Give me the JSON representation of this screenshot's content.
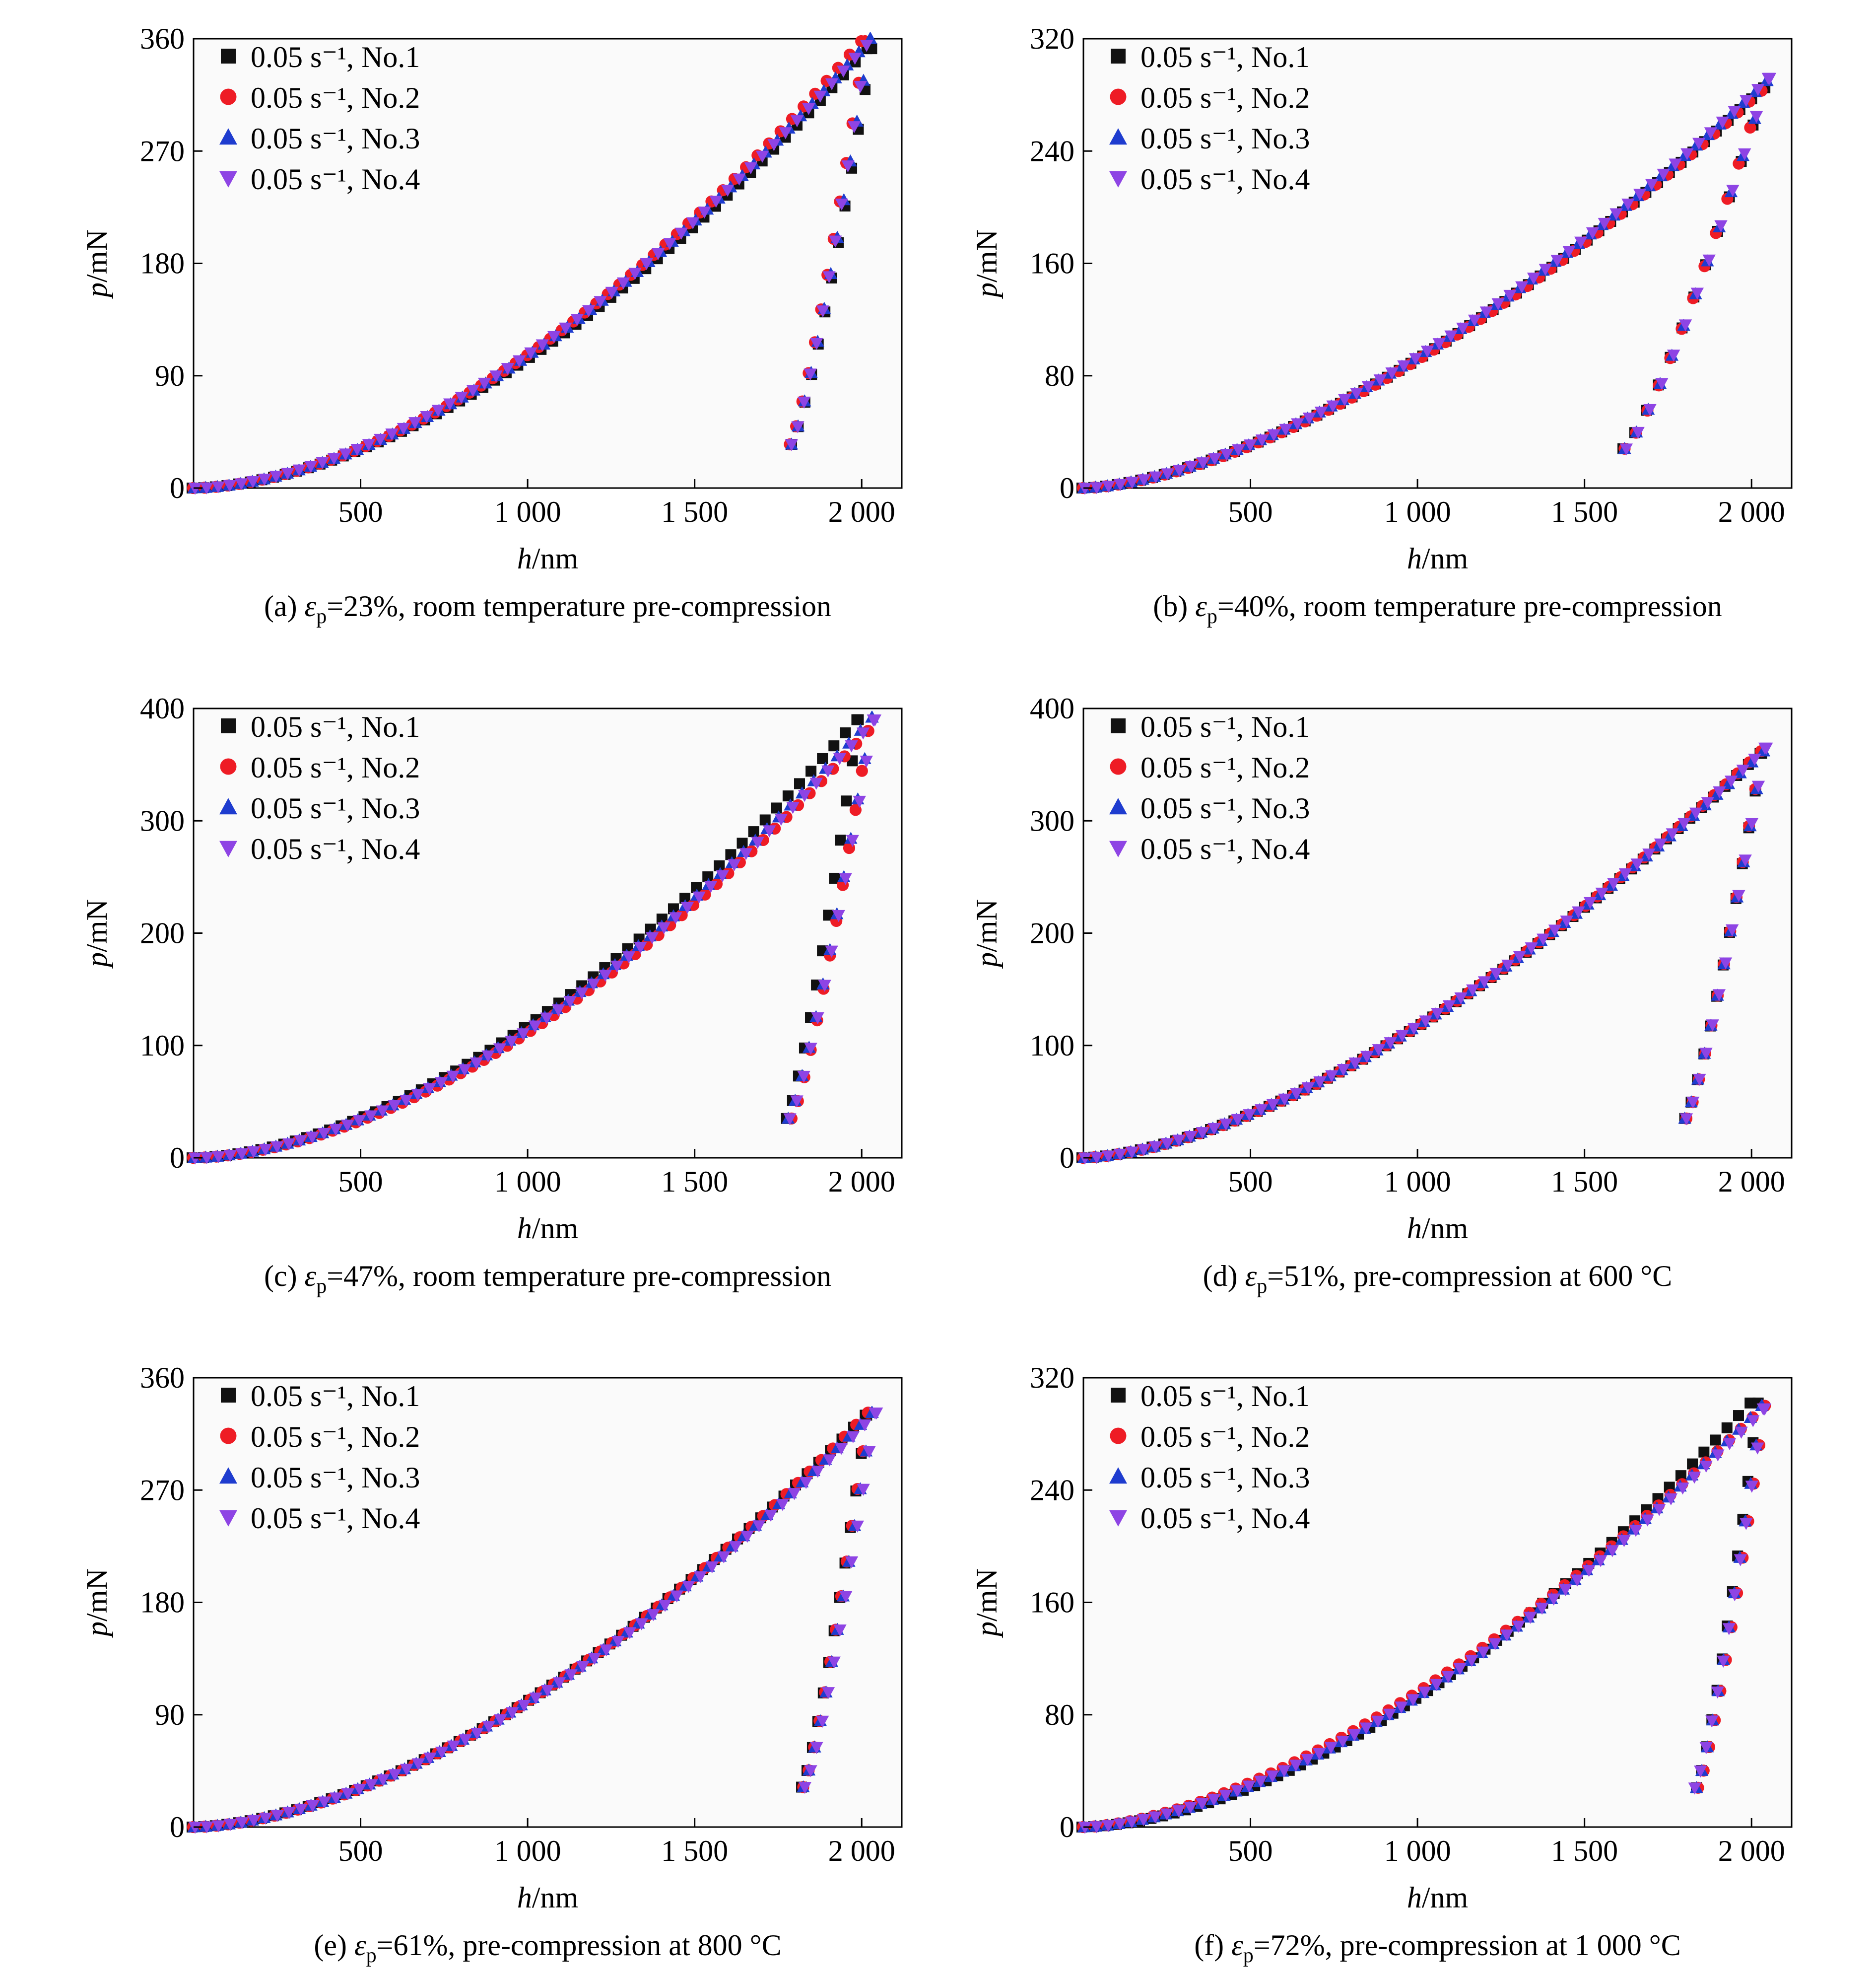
{
  "figure": {
    "background": "#ffffff",
    "series_styles": [
      {
        "marker": "square",
        "color": "#111111"
      },
      {
        "marker": "circle",
        "color": "#ee1c25"
      },
      {
        "marker": "triangle-up",
        "color": "#1e3ccf"
      },
      {
        "marker": "triangle-down",
        "color": "#8e44e4"
      }
    ]
  },
  "chart_data": [
    {
      "type": "scatter",
      "panel": "(a)",
      "caption": {
        "prefix": "(a) ",
        "symbol": "ε",
        "sub": "p",
        "suffix": "=23%, room temperature pre-compression"
      },
      "xlabel": {
        "var": "h",
        "unit": "/nm"
      },
      "ylabel": {
        "var": "p",
        "unit": "/mN"
      },
      "xlim": [
        0,
        2120
      ],
      "ylim": [
        0,
        360
      ],
      "xticks": [
        500,
        1000,
        1500,
        2000
      ],
      "xtick_labels": [
        "500",
        "1 000",
        "1 500",
        "2 000"
      ],
      "yticks": [
        0,
        90,
        180,
        270,
        360
      ],
      "ytick_labels": [
        "0",
        "90",
        "180",
        "270",
        "360"
      ],
      "grid": false,
      "legend": "top-left",
      "series": [
        {
          "name": "0.05 s⁻¹, No.1",
          "loading": {
            "h_max": 2020,
            "p_max": 352,
            "exponent": 1.75
          },
          "unloading": {
            "h_start": 1790,
            "h_end": 2030,
            "p_start": 35,
            "p_end": 352
          }
        },
        {
          "name": "0.05 s⁻¹, No.2",
          "loading": {
            "h_max": 2000,
            "p_max": 358,
            "exponent": 1.75
          },
          "unloading": {
            "h_start": 1785,
            "h_end": 2010,
            "p_start": 35,
            "p_end": 358
          }
        },
        {
          "name": "0.05 s⁻¹, No.3",
          "loading": {
            "h_max": 2025,
            "p_max": 360,
            "exponent": 1.73
          },
          "unloading": {
            "h_start": 1790,
            "h_end": 2025,
            "p_start": 35,
            "p_end": 360
          }
        },
        {
          "name": "0.05 s⁻¹, No.4",
          "loading": {
            "h_max": 2010,
            "p_max": 355,
            "exponent": 1.71
          },
          "unloading": {
            "h_start": 1790,
            "h_end": 2015,
            "p_start": 35,
            "p_end": 355
          }
        }
      ]
    },
    {
      "type": "scatter",
      "panel": "(b)",
      "caption": {
        "prefix": "(b) ",
        "symbol": "ε",
        "sub": "p",
        "suffix": "=40%, room temperature pre-compression"
      },
      "xlabel": {
        "var": "h",
        "unit": "/nm"
      },
      "ylabel": {
        "var": "p",
        "unit": "/mN"
      },
      "xlim": [
        0,
        2120
      ],
      "ylim": [
        0,
        320
      ],
      "xticks": [
        500,
        1000,
        1500,
        2000
      ],
      "xtick_labels": [
        "500",
        "1 000",
        "1 500",
        "2 000"
      ],
      "yticks": [
        0,
        80,
        160,
        240,
        320
      ],
      "ytick_labels": [
        "0",
        "80",
        "160",
        "240",
        "320"
      ],
      "grid": false,
      "legend": "top-left",
      "series": [
        {
          "name": "0.05 s⁻¹, No.1",
          "loading": {
            "h_max": 2040,
            "p_max": 285,
            "exponent": 1.6
          },
          "unloading": {
            "h_start": 1615,
            "h_end": 2040,
            "p_start": 28,
            "p_end": 285
          }
        },
        {
          "name": "0.05 s⁻¹, No.2",
          "loading": {
            "h_max": 2030,
            "p_max": 283,
            "exponent": 1.6
          },
          "unloading": {
            "h_start": 1620,
            "h_end": 2030,
            "p_start": 28,
            "p_end": 283
          }
        },
        {
          "name": "0.05 s⁻¹, No.3",
          "loading": {
            "h_max": 2045,
            "p_max": 290,
            "exponent": 1.58
          },
          "unloading": {
            "h_start": 1620,
            "h_end": 2045,
            "p_start": 28,
            "p_end": 290
          }
        },
        {
          "name": "0.05 s⁻¹, No.4",
          "loading": {
            "h_max": 2050,
            "p_max": 292,
            "exponent": 1.58
          },
          "unloading": {
            "h_start": 1625,
            "h_end": 2050,
            "p_start": 28,
            "p_end": 292
          }
        }
      ]
    },
    {
      "type": "scatter",
      "panel": "(c)",
      "caption": {
        "prefix": "(c) ",
        "symbol": "ε",
        "sub": "p",
        "suffix": "=47%, room temperature pre-compression"
      },
      "xlabel": {
        "var": "h",
        "unit": "/nm"
      },
      "ylabel": {
        "var": "p",
        "unit": "/mN"
      },
      "xlim": [
        0,
        2120
      ],
      "ylim": [
        0,
        400
      ],
      "xticks": [
        500,
        1000,
        1500,
        2000
      ],
      "xtick_labels": [
        "500",
        "1 000",
        "1 500",
        "2 000"
      ],
      "yticks": [
        0,
        100,
        200,
        300,
        400
      ],
      "ytick_labels": [
        "0",
        "100",
        "200",
        "300",
        "400"
      ],
      "grid": false,
      "legend": "top-left",
      "series": [
        {
          "name": "0.05 s⁻¹, No.1",
          "loading": {
            "h_max": 1990,
            "p_max": 390,
            "exponent": 1.75
          },
          "unloading": {
            "h_start": 1775,
            "h_end": 1990,
            "p_start": 35,
            "p_end": 390
          }
        },
        {
          "name": "0.05 s⁻¹, No.2",
          "loading": {
            "h_max": 2020,
            "p_max": 380,
            "exponent": 1.75
          },
          "unloading": {
            "h_start": 1790,
            "h_end": 2020,
            "p_start": 35,
            "p_end": 380
          }
        },
        {
          "name": "0.05 s⁻¹, No.3",
          "loading": {
            "h_max": 2030,
            "p_max": 392,
            "exponent": 1.73
          },
          "unloading": {
            "h_start": 1780,
            "h_end": 2030,
            "p_start": 35,
            "p_end": 392
          }
        },
        {
          "name": "0.05 s⁻¹, No.4",
          "loading": {
            "h_max": 2035,
            "p_max": 390,
            "exponent": 1.73
          },
          "unloading": {
            "h_start": 1785,
            "h_end": 2035,
            "p_start": 35,
            "p_end": 390
          }
        }
      ]
    },
    {
      "type": "scatter",
      "panel": "(d)",
      "caption": {
        "prefix": "(d) ",
        "symbol": "ε",
        "sub": "p",
        "suffix": "=51%, pre-compression at 600 °C"
      },
      "xlabel": {
        "var": "h",
        "unit": "/nm"
      },
      "ylabel": {
        "var": "p",
        "unit": "/mN"
      },
      "xlim": [
        0,
        2120
      ],
      "ylim": [
        0,
        400
      ],
      "xticks": [
        500,
        1000,
        1500,
        2000
      ],
      "xtick_labels": [
        "500",
        "1 000",
        "1 500",
        "2 000"
      ],
      "yticks": [
        0,
        100,
        200,
        300,
        400
      ],
      "ytick_labels": [
        "0",
        "100",
        "200",
        "300",
        "400"
      ],
      "grid": false,
      "legend": "top-left",
      "series": [
        {
          "name": "0.05 s⁻¹, No.1",
          "loading": {
            "h_max": 2030,
            "p_max": 360,
            "exponent": 1.6
          },
          "unloading": {
            "h_start": 1800,
            "h_end": 2030,
            "p_start": 35,
            "p_end": 360
          }
        },
        {
          "name": "0.05 s⁻¹, No.2",
          "loading": {
            "h_max": 2030,
            "p_max": 362,
            "exponent": 1.6
          },
          "unloading": {
            "h_start": 1805,
            "h_end": 2030,
            "p_start": 35,
            "p_end": 362
          }
        },
        {
          "name": "0.05 s⁻¹, No.3",
          "loading": {
            "h_max": 2035,
            "p_max": 362,
            "exponent": 1.58
          },
          "unloading": {
            "h_start": 1800,
            "h_end": 2035,
            "p_start": 35,
            "p_end": 362
          }
        },
        {
          "name": "0.05 s⁻¹, No.4",
          "loading": {
            "h_max": 2040,
            "p_max": 365,
            "exponent": 1.58
          },
          "unloading": {
            "h_start": 1805,
            "h_end": 2040,
            "p_start": 35,
            "p_end": 365
          }
        }
      ]
    },
    {
      "type": "scatter",
      "panel": "(e)",
      "caption": {
        "prefix": "(e) ",
        "symbol": "ε",
        "sub": "p",
        "suffix": "=61%, pre-compression at 800 °C"
      },
      "xlabel": {
        "var": "h",
        "unit": "/nm"
      },
      "ylabel": {
        "var": "p",
        "unit": "/mN"
      },
      "xlim": [
        0,
        2120
      ],
      "ylim": [
        0,
        360
      ],
      "xticks": [
        500,
        1000,
        1500,
        2000
      ],
      "xtick_labels": [
        "500",
        "1 000",
        "1 500",
        "2 000"
      ],
      "yticks": [
        0,
        90,
        180,
        270,
        360
      ],
      "ytick_labels": [
        "0",
        "90",
        "180",
        "270",
        "360"
      ],
      "grid": false,
      "legend": "top-left",
      "series": [
        {
          "name": "0.05 s⁻¹, No.1",
          "loading": {
            "h_max": 2015,
            "p_max": 330,
            "exponent": 1.7
          },
          "unloading": {
            "h_start": 1820,
            "h_end": 2015,
            "p_start": 32,
            "p_end": 330
          }
        },
        {
          "name": "0.05 s⁻¹, No.2",
          "loading": {
            "h_max": 2020,
            "p_max": 332,
            "exponent": 1.7
          },
          "unloading": {
            "h_start": 1825,
            "h_end": 2020,
            "p_start": 32,
            "p_end": 332
          }
        },
        {
          "name": "0.05 s⁻¹, No.3",
          "loading": {
            "h_max": 2030,
            "p_max": 332,
            "exponent": 1.68
          },
          "unloading": {
            "h_start": 1825,
            "h_end": 2030,
            "p_start": 32,
            "p_end": 332
          }
        },
        {
          "name": "0.05 s⁻¹, No.4",
          "loading": {
            "h_max": 2040,
            "p_max": 332,
            "exponent": 1.68
          },
          "unloading": {
            "h_start": 1830,
            "h_end": 2040,
            "p_start": 32,
            "p_end": 332
          }
        }
      ]
    },
    {
      "type": "scatter",
      "panel": "(f)",
      "caption": {
        "prefix": "(f) ",
        "symbol": "ε",
        "sub": "p",
        "suffix": "=72%, pre-compression at 1 000 °C"
      },
      "xlabel": {
        "var": "h",
        "unit": "/nm"
      },
      "ylabel": {
        "var": "p",
        "unit": "/mN"
      },
      "xlim": [
        0,
        2120
      ],
      "ylim": [
        0,
        320
      ],
      "xticks": [
        500,
        1000,
        1500,
        2000
      ],
      "xtick_labels": [
        "500",
        "1 000",
        "1 500",
        "2 000"
      ],
      "yticks": [
        0,
        80,
        160,
        240,
        320
      ],
      "ytick_labels": [
        "0",
        "80",
        "160",
        "240",
        "320"
      ],
      "grid": false,
      "legend": "top-left",
      "series": [
        {
          "name": "0.05 s⁻¹, No.1",
          "loading": {
            "h_max": 2000,
            "p_max": 302,
            "exponent": 1.72
          },
          "unloading": {
            "h_start": 1835,
            "h_end": 2020,
            "p_start": 28,
            "p_end": 302
          }
        },
        {
          "name": "0.05 s⁻¹, No.2",
          "loading": {
            "h_max": 2040,
            "p_max": 300,
            "exponent": 1.6
          },
          "unloading": {
            "h_start": 1840,
            "h_end": 2040,
            "p_start": 28,
            "p_end": 300
          }
        },
        {
          "name": "0.05 s⁻¹, No.3",
          "loading": {
            "h_max": 2030,
            "p_max": 300,
            "exponent": 1.65
          },
          "unloading": {
            "h_start": 1835,
            "h_end": 2030,
            "p_start": 28,
            "p_end": 300
          }
        },
        {
          "name": "0.05 s⁻¹, No.4",
          "loading": {
            "h_max": 2035,
            "p_max": 298,
            "exponent": 1.63
          },
          "unloading": {
            "h_start": 1830,
            "h_end": 2035,
            "p_start": 28,
            "p_end": 298
          }
        }
      ]
    }
  ]
}
